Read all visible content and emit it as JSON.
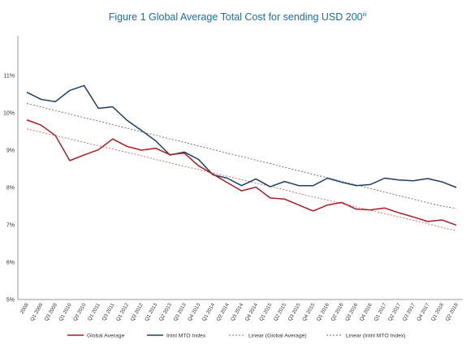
{
  "chart_data": {
    "type": "line",
    "title": "Figure 1 Global Average Total Cost for sending USD 200",
    "title_note_marker": "iii",
    "xlabel": "",
    "ylabel": "",
    "ylim": [
      5,
      12
    ],
    "yticks": [
      5,
      6,
      7,
      8,
      9,
      10,
      11
    ],
    "ytick_labels": [
      "5%",
      "6%",
      "7%",
      "8%",
      "9%",
      "10%",
      "11%"
    ],
    "grid": false,
    "legend_position": "bottom",
    "categories": [
      "2008",
      "Q1 2009",
      "Q3 2009",
      "Q1 2010",
      "Q3 2010",
      "Q1 2011",
      "Q3 2011",
      "Q1 2012",
      "Q3 2012",
      "Q1 2013",
      "Q2 2013",
      "Q3 2013",
      "Q4 2013",
      "Q1 2014",
      "Q2 2014",
      "Q3 2014",
      "Q4 2014",
      "Q1 2015",
      "Q2 2015",
      "Q3 2015",
      "Q4 2015",
      "Q1 2016",
      "Q2 2016",
      "Q3 2016",
      "Q4 2016",
      "Q1 2017",
      "Q2 2017",
      "Q3 2017",
      "Q4 2017",
      "Q1 2018",
      "Q2 2018"
    ],
    "series": [
      {
        "name": "Global Average",
        "color": "#a81c22",
        "style": "solid",
        "values": [
          9.81,
          9.67,
          9.39,
          8.72,
          8.87,
          9.01,
          9.3,
          9.1,
          9.0,
          9.05,
          8.88,
          8.92,
          8.58,
          8.36,
          8.13,
          7.91,
          8.01,
          7.72,
          7.69,
          7.53,
          7.37,
          7.53,
          7.6,
          7.42,
          7.4,
          7.45,
          7.32,
          7.21,
          7.09,
          7.13,
          6.99
        ]
      },
      {
        "name": "Intnl MTO Index",
        "color": "#1f3d66",
        "style": "solid",
        "values": [
          10.55,
          10.36,
          10.3,
          10.6,
          10.73,
          10.12,
          10.16,
          9.8,
          9.53,
          9.25,
          8.87,
          8.95,
          8.75,
          8.34,
          8.25,
          8.05,
          8.23,
          8.02,
          8.16,
          8.05,
          8.05,
          8.25,
          8.14,
          8.05,
          8.08,
          8.25,
          8.2,
          8.18,
          8.24,
          8.15,
          8.0
        ]
      },
      {
        "name": "Linear (Global Average)",
        "color": "#c9665f",
        "style": "dashed",
        "values": [
          9.57,
          9.48,
          9.39,
          9.3,
          9.21,
          9.12,
          9.03,
          8.94,
          8.85,
          8.75,
          8.66,
          8.57,
          8.48,
          8.39,
          8.3,
          8.21,
          8.12,
          8.03,
          7.94,
          7.84,
          7.75,
          7.66,
          7.57,
          7.48,
          7.39,
          7.3,
          7.21,
          7.12,
          7.03,
          6.93,
          6.84
        ]
      },
      {
        "name": "Linear (Intnl MTO Index)",
        "color": "#666666",
        "style": "dashed",
        "values": [
          10.25,
          10.16,
          10.06,
          9.97,
          9.87,
          9.78,
          9.68,
          9.59,
          9.49,
          9.4,
          9.3,
          9.21,
          9.11,
          9.02,
          8.92,
          8.83,
          8.73,
          8.64,
          8.54,
          8.45,
          8.35,
          8.26,
          8.16,
          8.07,
          7.97,
          7.88,
          7.78,
          7.69,
          7.59,
          7.5,
          7.44
        ]
      }
    ]
  }
}
